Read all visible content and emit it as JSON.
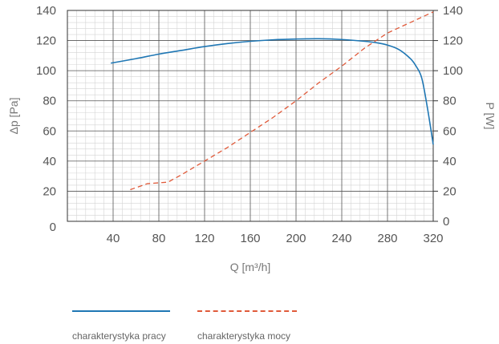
{
  "chart_data": {
    "type": "line",
    "xlabel": "Q [m³/h]",
    "ylabel_left": "Δp [Pa]",
    "ylabel_right": "P [W]",
    "xlim": [
      0,
      320
    ],
    "ylim_left": [
      0,
      140
    ],
    "ylim_right": [
      0,
      140
    ],
    "x_ticks": [
      40,
      80,
      120,
      160,
      200,
      240,
      280,
      320
    ],
    "y_ticks_left": [
      0,
      20,
      40,
      60,
      80,
      100,
      120,
      140
    ],
    "y_ticks_right": [
      0,
      20,
      40,
      60,
      80,
      100,
      120,
      140
    ],
    "grid": true,
    "series": [
      {
        "name": "charakterystyka pracy",
        "axis": "left",
        "color": "#1f77b4",
        "style": "solid",
        "x": [
          38,
          60,
          80,
          100,
          120,
          140,
          160,
          180,
          200,
          220,
          240,
          260,
          270,
          280,
          290,
          300,
          305,
          310,
          315,
          320
        ],
        "y": [
          105,
          108,
          111,
          113.5,
          116,
          118,
          119.5,
          120.5,
          121,
          121.2,
          120.7,
          119.5,
          118.6,
          117,
          114,
          108,
          103,
          95,
          75,
          51
        ]
      },
      {
        "name": "charakterystyka mocy",
        "axis": "right",
        "color": "#e05a3a",
        "style": "dashed",
        "x": [
          55,
          70,
          88,
          100,
          120,
          140,
          160,
          180,
          200,
          220,
          240,
          260,
          280,
          300,
          320
        ],
        "y": [
          21,
          25,
          26,
          31,
          40,
          49,
          59,
          69,
          80,
          92,
          103,
          115,
          125,
          132,
          139
        ]
      }
    ],
    "legend_placement": "bottom-left"
  }
}
